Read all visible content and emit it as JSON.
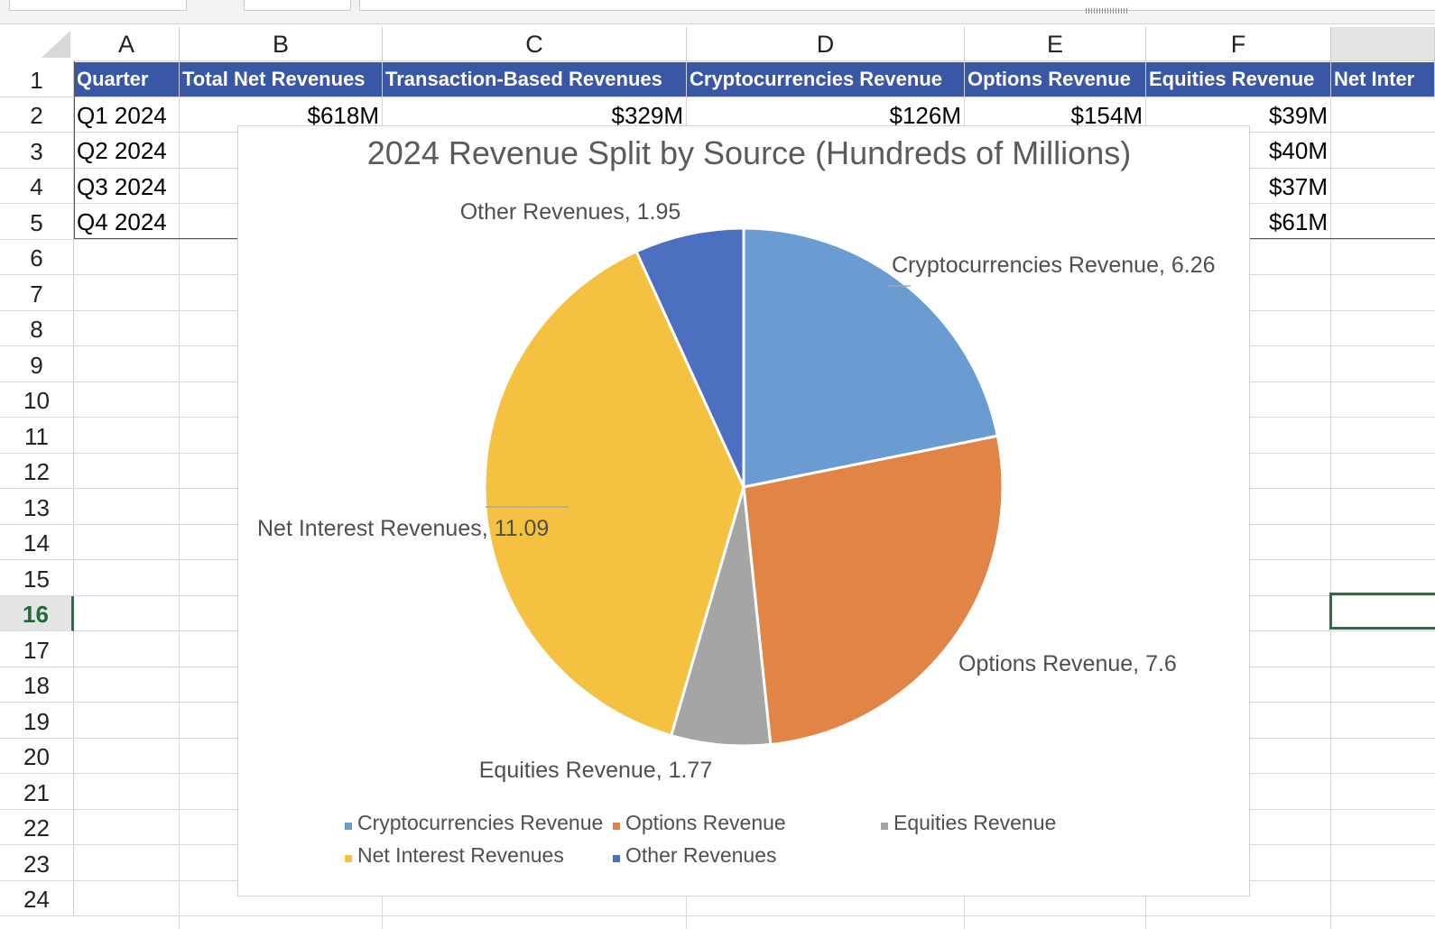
{
  "sheet": {
    "columns": [
      "A",
      "B",
      "C",
      "D",
      "E",
      "F",
      ""
    ],
    "rows": [
      "1",
      "2",
      "3",
      "4",
      "5",
      "6",
      "7",
      "8",
      "9",
      "10",
      "11",
      "12",
      "13",
      "14",
      "15",
      "16",
      "17",
      "18",
      "19",
      "20",
      "21",
      "22",
      "23",
      "24"
    ],
    "selected_row": "16",
    "headers": [
      "Quarter",
      "Total Net Revenues",
      "Transaction-Based Revenues",
      "Cryptocurrencies Revenue",
      "Options Revenue",
      "Equities Revenue",
      "Net Inter"
    ],
    "data_rows": [
      [
        "Q1 2024",
        "$618M",
        "$329M",
        "$126M",
        "$154M",
        "$39M"
      ],
      [
        "Q2 2024",
        "",
        "",
        "",
        "",
        "$40M"
      ],
      [
        "Q3 2024",
        "",
        "",
        "",
        "",
        "$37M"
      ],
      [
        "Q4 2024",
        "",
        "",
        "",
        "",
        "$61M"
      ]
    ],
    "header_color": "#3a57a5",
    "selection_color": "#217346"
  },
  "chart_data": {
    "type": "pie",
    "title": "2024 Revenue Split by Source (Hundreds of Millions)",
    "categories": [
      "Cryptocurrencies Revenue",
      "Options Revenue",
      "Equities Revenue",
      "Net Interest Revenues",
      "Other Revenues"
    ],
    "values": [
      6.26,
      7.6,
      1.77,
      11.09,
      1.95
    ],
    "data_labels": [
      "Cryptocurrencies Revenue, 6.26",
      "Options Revenue, 7.6",
      "Equities Revenue, 1.77",
      "Net Interest Revenues, 11.09",
      "Other Revenues, 1.95"
    ],
    "colors": [
      "#6a9bd1",
      "#e08545",
      "#a5a5a5",
      "#f4c141",
      "#4c6fbf"
    ],
    "start_angle": "12 o'clock, clockwise",
    "legend_position": "bottom",
    "legend": [
      "Cryptocurrencies Revenue",
      "Options Revenue",
      "Equities Revenue",
      "Net Interest Revenues",
      "Other Revenues"
    ]
  }
}
